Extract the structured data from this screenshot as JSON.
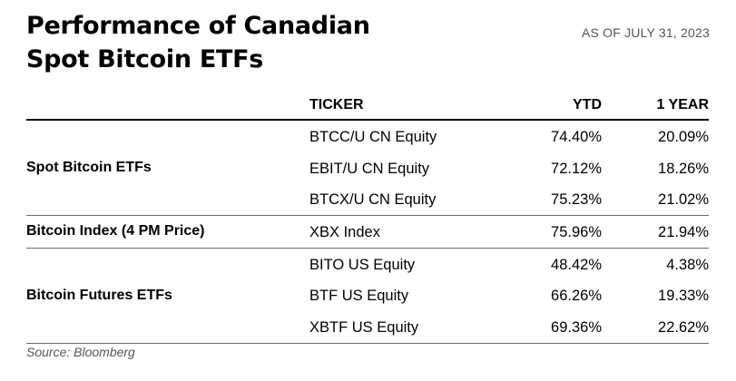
{
  "header": {
    "title_line1": "Performance of Canadian",
    "title_line2": "Spot Bitcoin ETFs",
    "as_of": "AS OF JULY 31, 2023"
  },
  "chart_data": {
    "type": "table",
    "columns": [
      "TICKER",
      "YTD",
      "1 YEAR"
    ],
    "groups": [
      {
        "label": "Spot Bitcoin ETFs",
        "rows": [
          {
            "ticker": "BTCC/U CN Equity",
            "ytd": "74.40%",
            "one_year": "20.09%"
          },
          {
            "ticker": "EBIT/U CN Equity",
            "ytd": "72.12%",
            "one_year": "18.26%"
          },
          {
            "ticker": "BTCX/U CN Equity",
            "ytd": "75.23%",
            "one_year": "21.02%"
          }
        ]
      },
      {
        "label": "Bitcoin Index (4 PM Price)",
        "rows": [
          {
            "ticker": "XBX Index",
            "ytd": "75.96%",
            "one_year": "21.94%"
          }
        ]
      },
      {
        "label": "Bitcoin Futures ETFs",
        "rows": [
          {
            "ticker": "BITO US Equity",
            "ytd": "48.42%",
            "one_year": "4.38%"
          },
          {
            "ticker": "BTF US Equity",
            "ytd": "66.26%",
            "one_year": "19.33%"
          },
          {
            "ticker": "XBTF US Equity",
            "ytd": "69.36%",
            "one_year": "22.62%"
          }
        ]
      }
    ]
  },
  "footer": {
    "source": "Source: Bloomberg"
  }
}
